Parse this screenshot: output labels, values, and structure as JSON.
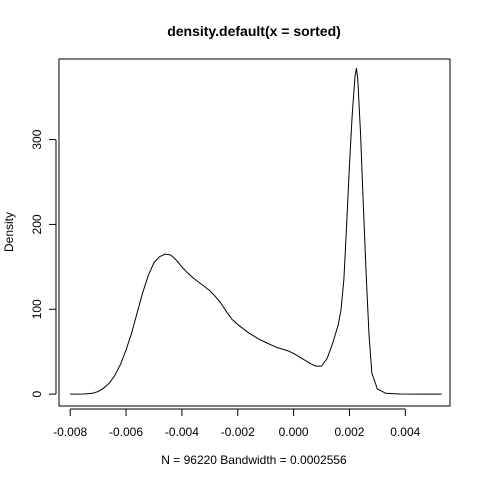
{
  "chart_data": {
    "type": "line",
    "title": "density.default(x = sorted)",
    "xlabel": "N = 96220   Bandwidth = 0.0002556",
    "ylabel": "Density",
    "xlim": [
      -0.0084,
      0.0056
    ],
    "ylim": [
      -14,
      395
    ],
    "x_ticks": [
      -0.008,
      -0.006,
      -0.004,
      -0.002,
      0.0,
      0.002,
      0.004
    ],
    "x_tick_labels": [
      "-0.008",
      "-0.006",
      "-0.004",
      "-0.002",
      "0.000",
      "0.002",
      "0.004"
    ],
    "y_ticks": [
      0,
      100,
      200,
      300
    ],
    "y_tick_labels": [
      "0",
      "100",
      "200",
      "300"
    ],
    "grid": false,
    "legend": "none",
    "series": [
      {
        "x": [
          -0.008,
          -0.0075,
          -0.0072,
          -0.007,
          -0.0068,
          -0.0066,
          -0.0064,
          -0.0062,
          -0.006,
          -0.0058,
          -0.0056,
          -0.0054,
          -0.0052,
          -0.005,
          -0.0048,
          -0.0046,
          -0.0044,
          -0.0042,
          -0.004,
          -0.0038,
          -0.0036,
          -0.0034,
          -0.0032,
          -0.003,
          -0.0028,
          -0.0026,
          -0.0024,
          -0.0022,
          -0.002,
          -0.0018,
          -0.0016,
          -0.0014,
          -0.0012,
          -0.001,
          -0.0008,
          -0.0006,
          -0.0004,
          -0.0002,
          0.0,
          0.0002,
          0.0004,
          0.0006,
          0.0008,
          0.001,
          0.0012,
          0.0014,
          0.0016,
          0.0017,
          0.0018,
          0.0019,
          0.002,
          0.0021,
          0.0022,
          0.00225,
          0.0023,
          0.0024,
          0.0025,
          0.0026,
          0.0027,
          0.0028,
          0.003,
          0.0033,
          0.0038,
          0.0045,
          0.0053
        ],
        "y": [
          0,
          0.2,
          1,
          3,
          7,
          13,
          22,
          35,
          52,
          72,
          96,
          120,
          140,
          155,
          162,
          165,
          164,
          158,
          150,
          143,
          137,
          132,
          127,
          122,
          115,
          107,
          97,
          88,
          82,
          77,
          72,
          68,
          64,
          61,
          58,
          55,
          53,
          51,
          48,
          44,
          40,
          36,
          33,
          33,
          42,
          60,
          82,
          100,
          135,
          200,
          270,
          330,
          375,
          384,
          370,
          305,
          220,
          140,
          70,
          25,
          6,
          1,
          0.2,
          0,
          0
        ]
      }
    ]
  }
}
